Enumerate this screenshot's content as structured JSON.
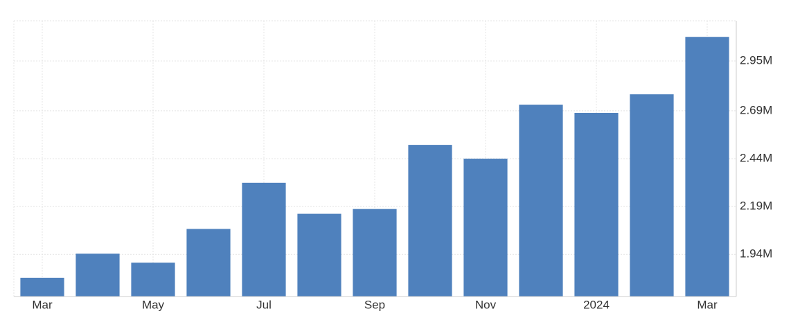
{
  "chart_data": {
    "type": "bar",
    "categories": [
      "Mar",
      null,
      "May",
      null,
      "Jul",
      null,
      "Sep",
      null,
      "Nov",
      null,
      "2024",
      null,
      "Mar"
    ],
    "values": [
      1818000,
      1944000,
      1897000,
      2073000,
      2314000,
      2152000,
      2177000,
      2512000,
      2440000,
      2722000,
      2679000,
      2776000,
      3076000
    ],
    "color": "#4f81bd",
    "ylim": [
      1720000,
      3160000
    ],
    "yticks": [
      {
        "value": 1940000,
        "label": "1.94M"
      },
      {
        "value": 2190000,
        "label": "2.19M"
      },
      {
        "value": 2440000,
        "label": "2.44M"
      },
      {
        "value": 2690000,
        "label": "2.69M"
      },
      {
        "value": 2950000,
        "label": "2.95M"
      }
    ],
    "grid": true
  }
}
